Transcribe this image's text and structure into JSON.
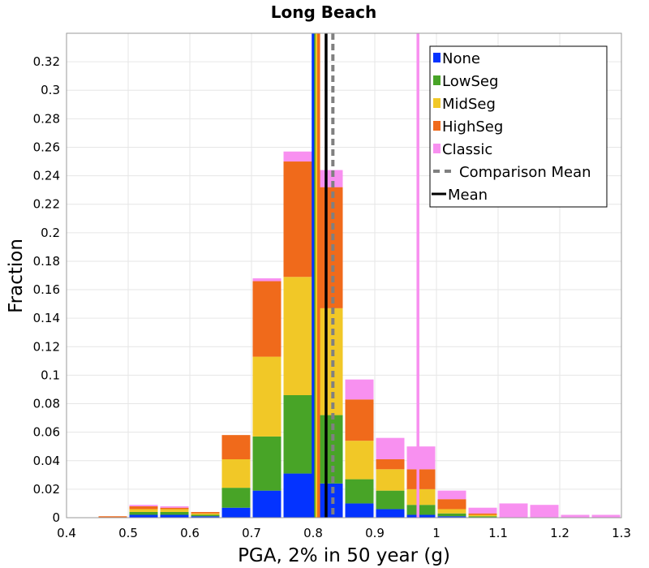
{
  "chart_data": {
    "type": "bar",
    "stacked": true,
    "title": "Long Beach",
    "xlabel": "PGA, 2% in 50 year (g)",
    "ylabel": "Fraction",
    "xlim": [
      0.4,
      1.3
    ],
    "ylim": [
      0,
      0.34
    ],
    "xticks": [
      "0.4",
      "0.5",
      "0.6",
      "0.7",
      "0.8",
      "0.9",
      "1",
      "1.1",
      "1.2",
      "1.3"
    ],
    "yticks": [
      "0",
      "0.02",
      "0.04",
      "0.06",
      "0.08",
      "0.1",
      "0.12",
      "0.14",
      "0.16",
      "0.18",
      "0.2",
      "0.22",
      "0.24",
      "0.26",
      "0.28",
      "0.3",
      "0.32"
    ],
    "grid": true,
    "legend_position": "top-right",
    "bin_width": 0.05,
    "bin_centers": [
      0.475,
      0.525,
      0.575,
      0.625,
      0.675,
      0.725,
      0.775,
      0.825,
      0.875,
      0.925,
      0.975,
      1.025,
      1.075,
      1.125,
      1.175,
      1.225,
      1.275
    ],
    "series": [
      {
        "name": "None",
        "color": "#0433ff",
        "values": [
          0,
          0.002,
          0.002,
          0.001,
          0.007,
          0.019,
          0.031,
          0.024,
          0.01,
          0.006,
          0.002,
          0.001,
          0,
          0,
          0,
          0,
          0
        ]
      },
      {
        "name": "LowSeg",
        "color": "#48a427",
        "values": [
          0,
          0.002,
          0.002,
          0.001,
          0.014,
          0.038,
          0.055,
          0.048,
          0.017,
          0.013,
          0.007,
          0.002,
          0.001,
          0,
          0,
          0,
          0
        ]
      },
      {
        "name": "MidSeg",
        "color": "#f1c827",
        "values": [
          0,
          0.002,
          0.002,
          0.001,
          0.02,
          0.056,
          0.083,
          0.075,
          0.027,
          0.015,
          0.011,
          0.003,
          0.001,
          0,
          0,
          0,
          0
        ]
      },
      {
        "name": "HighSeg",
        "color": "#f06a1b",
        "values": [
          0.001,
          0.002,
          0.001,
          0.001,
          0.017,
          0.053,
          0.081,
          0.085,
          0.029,
          0.007,
          0.014,
          0.007,
          0.001,
          0,
          0,
          0,
          0
        ]
      },
      {
        "name": "Classic",
        "color": "#f890f0",
        "values": [
          0,
          0.001,
          0.001,
          0,
          0,
          0.002,
          0.007,
          0.012,
          0.014,
          0.015,
          0.016,
          0.006,
          0.004,
          0.01,
          0.009,
          0.002,
          0.002
        ]
      }
    ],
    "reference_lines": [
      {
        "name": "None mean",
        "color": "#0433ff",
        "x": 0.8,
        "style": "solid"
      },
      {
        "name": "LowSeg mean",
        "color": "#48a427",
        "x": 0.804,
        "style": "solid"
      },
      {
        "name": "MidSeg mean",
        "color": "#f1c827",
        "x": 0.806,
        "style": "solid"
      },
      {
        "name": "HighSeg mean",
        "color": "#f06a1b",
        "x": 0.809,
        "style": "solid"
      },
      {
        "name": "Classic mean",
        "color": "#f890f0",
        "x": 0.97,
        "style": "solid"
      },
      {
        "name": "Comparison Mean",
        "color": "#808080",
        "x": 0.832,
        "style": "dashed"
      },
      {
        "name": "Mean",
        "color": "#000000",
        "x": 0.821,
        "style": "solid"
      }
    ],
    "legend": [
      {
        "label": "None",
        "color": "#0433ff",
        "kind": "box"
      },
      {
        "label": "LowSeg",
        "color": "#48a427",
        "kind": "box"
      },
      {
        "label": "MidSeg",
        "color": "#f1c827",
        "kind": "box"
      },
      {
        "label": "HighSeg",
        "color": "#f06a1b",
        "kind": "box"
      },
      {
        "label": "Classic",
        "color": "#f890f0",
        "kind": "box"
      },
      {
        "label": "Comparison Mean",
        "color": "#808080",
        "kind": "dashed"
      },
      {
        "label": "Mean",
        "color": "#000000",
        "kind": "line"
      }
    ]
  }
}
